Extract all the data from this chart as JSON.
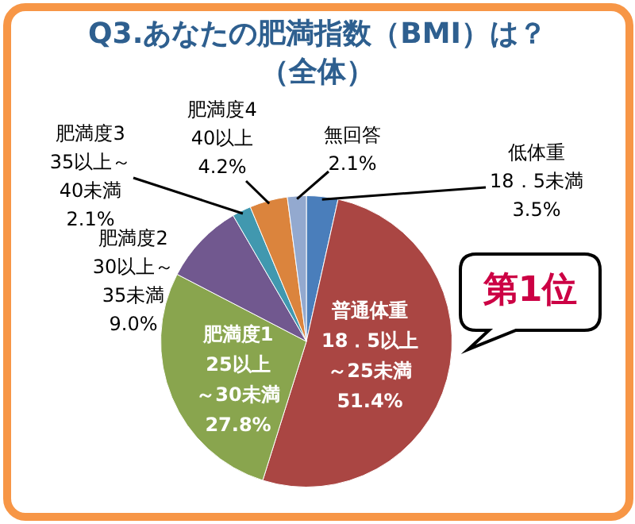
{
  "chart_data": {
    "type": "pie",
    "title": "Q3.あなたの肥満指数（BMI）は？（全体）",
    "categories": [
      "低体重18．5未満",
      "普通体重18．5以上～25未満",
      "肥満度125以上～30未満",
      "肥満度230以上～35未満",
      "肥満度335以上～40未満",
      "肥満度440以上",
      "無回答"
    ],
    "values": [
      3.5,
      51.4,
      27.8,
      9.0,
      2.1,
      4.2,
      2.1
    ],
    "value_labels": [
      "3.5%",
      "51.4%",
      "27.8%",
      "9.0%",
      "2.1%",
      "4.2%",
      "2.1%"
    ],
    "colors": [
      "#4a7ebb",
      "#aa4643",
      "#89a54e",
      "#71588f",
      "#4198af",
      "#db843d",
      "#93a9cf"
    ],
    "annotations": [
      "第1位"
    ],
    "legend": false
  }
}
